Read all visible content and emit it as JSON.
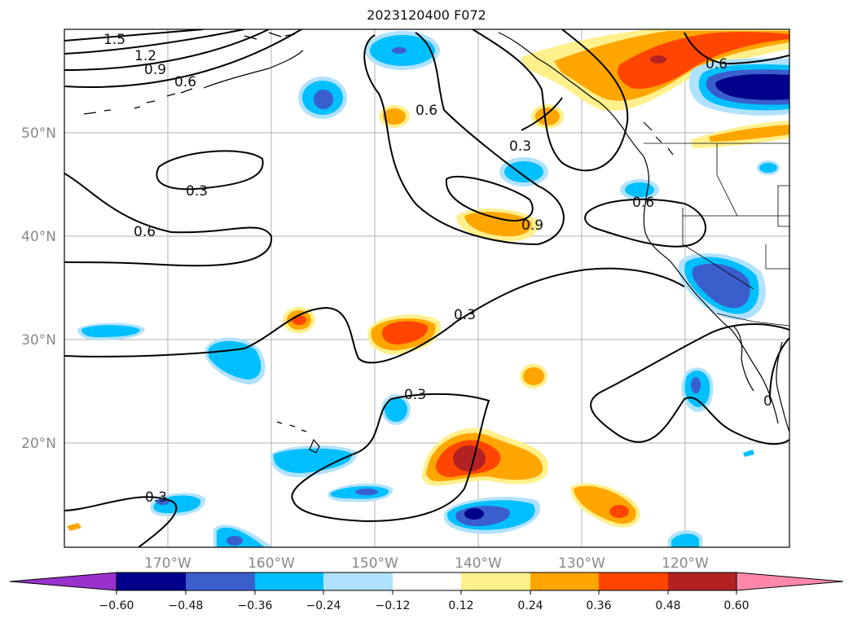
{
  "title": "2023120400 F072",
  "lat_labels": [
    "50°N",
    "40°N",
    "30°N",
    "20°N"
  ],
  "lon_labels": [
    "170°W",
    "160°W",
    "150°W",
    "140°W",
    "130°W",
    "120°W"
  ],
  "colorbar": {
    "tick_labels": [
      "−0.60",
      "−0.48",
      "−0.36",
      "−0.24",
      "−0.12",
      "0.12",
      "0.24",
      "0.36",
      "0.48",
      "0.60"
    ],
    "colors": [
      "#9932cc",
      "#00008b",
      "#3a5fcd",
      "#00bfff",
      "#b0e2ff",
      "#ffffff",
      "#fff08c",
      "#ffa500",
      "#ff4500",
      "#b22222",
      "#ff88aa"
    ]
  },
  "contour_labels": [
    "1.5",
    "1.2",
    "0.9",
    "0.6",
    "0.6",
    "0.3",
    "0.6",
    "0.3",
    "0.9",
    "0.6",
    "0.6",
    "0.3",
    "0.3",
    "0.3",
    "0"
  ],
  "colors": {
    "blue_dark": "#00008b",
    "blue_mid": "#3a5fcd",
    "blue": "#00bfff",
    "blue_light": "#b0e2ff",
    "yellow": "#fff08c",
    "orange": "#ffa500",
    "red_orange": "#ff4500",
    "dark_red": "#b22222"
  }
}
